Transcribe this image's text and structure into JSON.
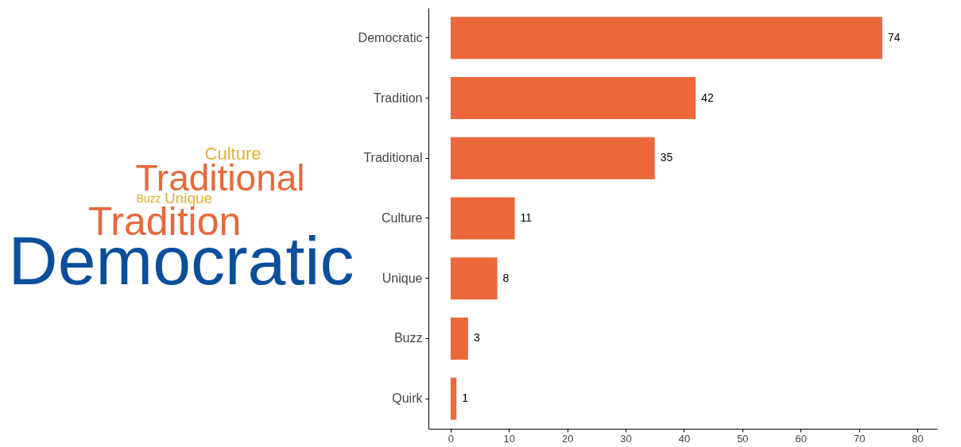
{
  "chart_data": [
    {
      "type": "other",
      "categories": [
        "Democratic",
        "Tradition",
        "Traditional",
        "Culture",
        "Unique",
        "Buzz"
      ],
      "colors": [
        "#0b4f9c",
        "#e8683a",
        "#e8683a",
        "#e0b030",
        "#e0b030",
        "#e0b030"
      ]
    },
    {
      "type": "bar",
      "orientation": "horizontal",
      "categories": [
        "Democratic",
        "Tradition",
        "Traditional",
        "Culture",
        "Unique",
        "Buzz",
        "Quirk"
      ],
      "values": [
        74,
        42,
        35,
        11,
        8,
        3,
        1
      ],
      "color": "#ec683b",
      "xlim": [
        -3.8,
        83.4
      ],
      "xticks": [
        0,
        10,
        20,
        30,
        40,
        50,
        60,
        70,
        80
      ],
      "grid": false,
      "data_labels": true
    }
  ]
}
